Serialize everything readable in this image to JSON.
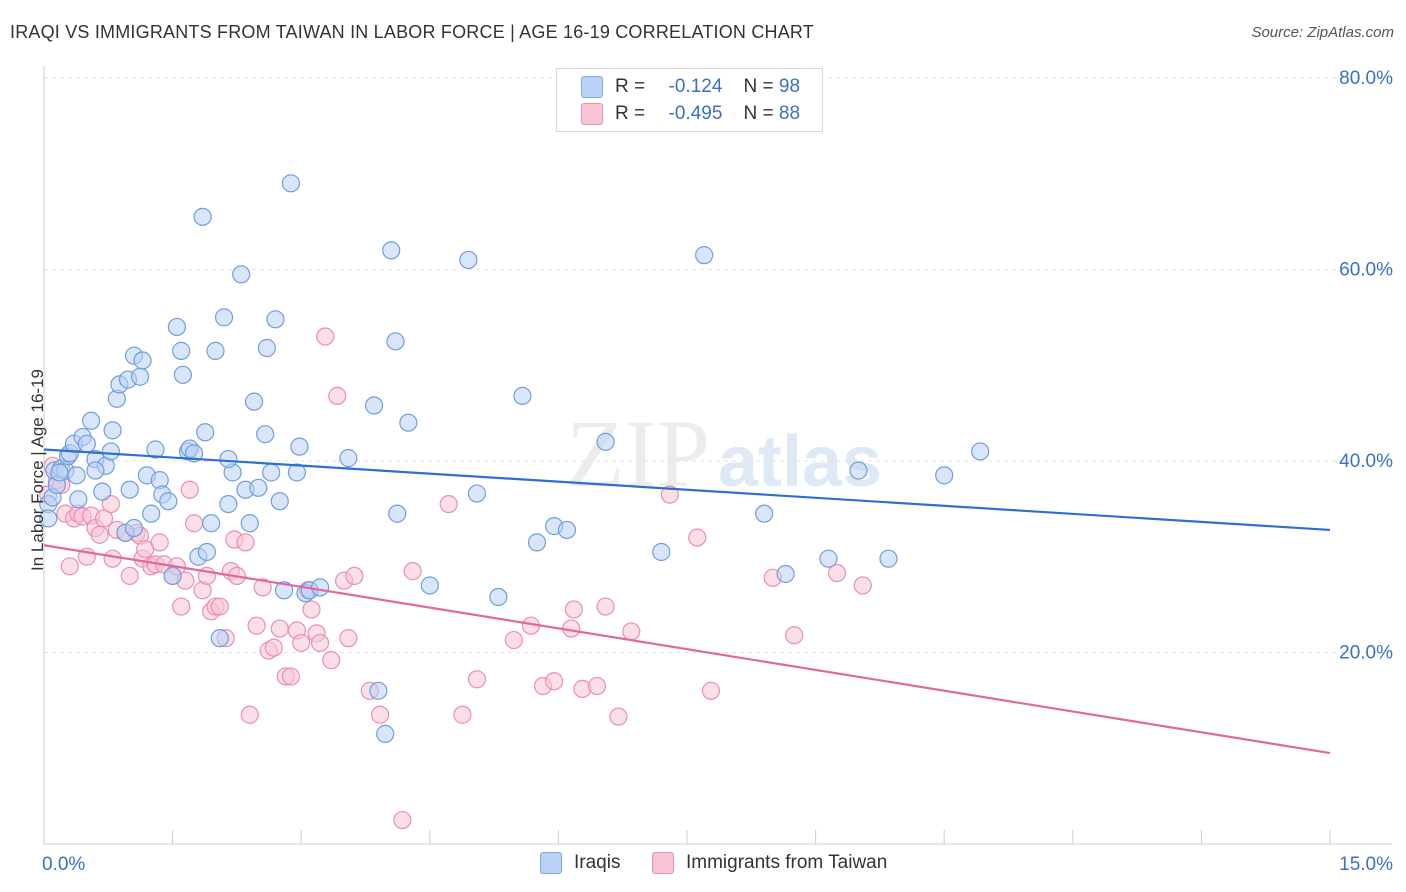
{
  "title": "IRAQI VS IMMIGRANTS FROM TAIWAN IN LABOR FORCE | AGE 16-19 CORRELATION CHART",
  "source": "Source: ZipAtlas.com",
  "watermark": {
    "zip": "ZIP",
    "atlas": "atlas"
  },
  "legend": {
    "rows": [
      {
        "r_label": "R =",
        "r_value": "-0.124",
        "n_label": "N =",
        "n_value": "98"
      },
      {
        "r_label": "R =",
        "r_value": "-0.495",
        "n_label": "N =",
        "n_value": "88"
      }
    ]
  },
  "bottom_legend": {
    "iraqis": "Iraqis",
    "taiwan": "Immigrants from Taiwan"
  },
  "colors": {
    "iraqis_fill": "#b9d2f5",
    "iraqis_stroke": "#6f9ee0",
    "iraqis_line": "#2f6fcf",
    "taiwan_fill": "#f8c4d4",
    "taiwan_stroke": "#ec8fac",
    "taiwan_line": "#e3679a",
    "tick_label": "#3a70c6",
    "grid": "#e3e3e3"
  },
  "chart_data": {
    "type": "scatter",
    "title": "IRAQI VS IMMIGRANTS FROM TAIWAN IN LABOR FORCE | AGE 16-19 CORRELATION CHART",
    "xlabel": "",
    "ylabel": "In Labor Force | Age 16-19",
    "xlim": [
      0,
      15
    ],
    "ylim": [
      0,
      80
    ],
    "x_tick_labels": [
      "0.0%",
      "15.0%"
    ],
    "y_ticks": [
      20,
      40,
      60,
      80
    ],
    "y_tick_labels": [
      "20.0%",
      "40.0%",
      "60.0%",
      "80.0%"
    ],
    "grid": true,
    "legend_position": "top-center",
    "series": [
      {
        "name": "Iraqis",
        "r": -0.124,
        "n": 98,
        "trend": {
          "x": [
            0,
            15
          ],
          "y": [
            41.2,
            32.8
          ]
        },
        "points": [
          [
            0.05,
            35.5
          ],
          [
            0.1,
            36.2
          ],
          [
            0.12,
            39.0
          ],
          [
            0.15,
            37.5
          ],
          [
            0.2,
            39.2
          ],
          [
            0.25,
            39.0
          ],
          [
            0.28,
            40.5
          ],
          [
            0.3,
            40.8
          ],
          [
            0.35,
            41.8
          ],
          [
            0.38,
            38.5
          ],
          [
            0.45,
            42.5
          ],
          [
            0.5,
            41.8
          ],
          [
            0.55,
            44.2
          ],
          [
            0.6,
            40.2
          ],
          [
            0.68,
            36.8
          ],
          [
            0.72,
            39.5
          ],
          [
            0.78,
            41.0
          ],
          [
            0.8,
            43.2
          ],
          [
            0.85,
            46.5
          ],
          [
            0.88,
            48.0
          ],
          [
            0.95,
            32.5
          ],
          [
            0.98,
            48.5
          ],
          [
            1.0,
            37.0
          ],
          [
            1.05,
            51.0
          ],
          [
            1.12,
            48.8
          ],
          [
            1.15,
            50.5
          ],
          [
            1.2,
            38.5
          ],
          [
            1.25,
            34.5
          ],
          [
            1.3,
            41.2
          ],
          [
            1.35,
            38.0
          ],
          [
            1.38,
            36.5
          ],
          [
            1.45,
            35.8
          ],
          [
            1.5,
            28.0
          ],
          [
            1.55,
            54.0
          ],
          [
            1.6,
            51.5
          ],
          [
            1.62,
            49.0
          ],
          [
            1.68,
            41.0
          ],
          [
            1.7,
            41.3
          ],
          [
            1.75,
            40.8
          ],
          [
            1.8,
            30.0
          ],
          [
            1.85,
            65.5
          ],
          [
            1.88,
            43.0
          ],
          [
            1.9,
            30.5
          ],
          [
            1.95,
            33.5
          ],
          [
            2.0,
            51.5
          ],
          [
            2.05,
            21.5
          ],
          [
            2.1,
            55.0
          ],
          [
            2.15,
            35.5
          ],
          [
            2.2,
            38.8
          ],
          [
            2.3,
            59.5
          ],
          [
            2.35,
            37.0
          ],
          [
            2.4,
            33.5
          ],
          [
            2.45,
            46.2
          ],
          [
            2.5,
            37.2
          ],
          [
            2.58,
            42.8
          ],
          [
            2.6,
            51.8
          ],
          [
            2.65,
            38.8
          ],
          [
            2.7,
            54.8
          ],
          [
            2.75,
            35.8
          ],
          [
            2.8,
            26.5
          ],
          [
            2.88,
            69.0
          ],
          [
            2.95,
            38.8
          ],
          [
            2.98,
            41.5
          ],
          [
            3.05,
            26.2
          ],
          [
            3.1,
            26.5
          ],
          [
            3.22,
            26.8
          ],
          [
            3.55,
            40.3
          ],
          [
            3.85,
            45.8
          ],
          [
            3.9,
            16.0
          ],
          [
            3.98,
            11.5
          ],
          [
            4.05,
            62.0
          ],
          [
            4.1,
            52.5
          ],
          [
            4.12,
            34.5
          ],
          [
            4.25,
            44.0
          ],
          [
            4.5,
            27.0
          ],
          [
            4.95,
            61.0
          ],
          [
            5.05,
            36.6
          ],
          [
            5.3,
            25.8
          ],
          [
            5.58,
            46.8
          ],
          [
            5.75,
            31.5
          ],
          [
            5.95,
            33.2
          ],
          [
            6.1,
            32.8
          ],
          [
            6.55,
            42.0
          ],
          [
            7.2,
            30.5
          ],
          [
            7.7,
            61.5
          ],
          [
            8.4,
            34.5
          ],
          [
            8.65,
            28.2
          ],
          [
            9.15,
            29.8
          ],
          [
            9.5,
            39.0
          ],
          [
            9.85,
            29.8
          ],
          [
            10.5,
            38.5
          ],
          [
            10.92,
            41.0
          ],
          [
            0.05,
            34.0
          ],
          [
            0.18,
            38.8
          ],
          [
            0.4,
            36.0
          ],
          [
            1.05,
            33.0
          ],
          [
            2.15,
            40.2
          ],
          [
            0.6,
            39.0
          ]
        ]
      },
      {
        "name": "Immigrants from Taiwan",
        "r": -0.495,
        "n": 88,
        "trend": {
          "x": [
            0,
            15
          ],
          "y": [
            31.2,
            9.5
          ]
        },
        "points": [
          [
            0.05,
            36.5
          ],
          [
            0.1,
            39.5
          ],
          [
            0.15,
            38.0
          ],
          [
            0.2,
            37.5
          ],
          [
            0.25,
            34.5
          ],
          [
            0.3,
            29.0
          ],
          [
            0.35,
            34.0
          ],
          [
            0.4,
            34.5
          ],
          [
            0.45,
            34.2
          ],
          [
            0.5,
            30.0
          ],
          [
            0.55,
            34.3
          ],
          [
            0.6,
            33.0
          ],
          [
            0.65,
            32.3
          ],
          [
            0.7,
            34.0
          ],
          [
            0.78,
            35.5
          ],
          [
            0.8,
            29.8
          ],
          [
            0.85,
            32.8
          ],
          [
            0.95,
            32.5
          ],
          [
            1.0,
            28.0
          ],
          [
            1.08,
            32.5
          ],
          [
            1.12,
            32.2
          ],
          [
            1.15,
            29.8
          ],
          [
            1.18,
            30.8
          ],
          [
            1.25,
            29.0
          ],
          [
            1.3,
            29.2
          ],
          [
            1.35,
            31.5
          ],
          [
            1.4,
            29.2
          ],
          [
            1.5,
            28.0
          ],
          [
            1.55,
            29.0
          ],
          [
            1.6,
            24.8
          ],
          [
            1.65,
            27.5
          ],
          [
            1.7,
            37.0
          ],
          [
            1.75,
            33.5
          ],
          [
            1.85,
            26.5
          ],
          [
            1.9,
            28.0
          ],
          [
            1.95,
            24.3
          ],
          [
            2.0,
            24.8
          ],
          [
            2.05,
            24.8
          ],
          [
            2.12,
            21.5
          ],
          [
            2.18,
            28.5
          ],
          [
            2.22,
            31.8
          ],
          [
            2.25,
            28.0
          ],
          [
            2.35,
            31.5
          ],
          [
            2.4,
            13.5
          ],
          [
            2.48,
            22.8
          ],
          [
            2.55,
            26.8
          ],
          [
            2.62,
            20.2
          ],
          [
            2.68,
            20.5
          ],
          [
            2.75,
            22.5
          ],
          [
            2.82,
            17.5
          ],
          [
            2.88,
            17.5
          ],
          [
            2.95,
            22.3
          ],
          [
            3.0,
            21.0
          ],
          [
            3.08,
            26.5
          ],
          [
            3.12,
            24.5
          ],
          [
            3.18,
            22.0
          ],
          [
            3.22,
            21.0
          ],
          [
            3.28,
            53.0
          ],
          [
            3.35,
            19.2
          ],
          [
            3.42,
            46.8
          ],
          [
            3.5,
            27.5
          ],
          [
            3.55,
            21.5
          ],
          [
            3.62,
            28.0
          ],
          [
            3.8,
            16.0
          ],
          [
            3.92,
            13.5
          ],
          [
            4.18,
            2.5
          ],
          [
            4.3,
            28.5
          ],
          [
            4.72,
            35.5
          ],
          [
            4.88,
            13.5
          ],
          [
            5.05,
            17.2
          ],
          [
            5.48,
            21.3
          ],
          [
            5.68,
            22.8
          ],
          [
            5.82,
            16.5
          ],
          [
            5.95,
            17.0
          ],
          [
            6.15,
            22.5
          ],
          [
            6.18,
            24.5
          ],
          [
            6.28,
            16.2
          ],
          [
            6.45,
            16.5
          ],
          [
            6.55,
            24.8
          ],
          [
            6.7,
            13.3
          ],
          [
            6.85,
            22.2
          ],
          [
            7.3,
            36.5
          ],
          [
            7.62,
            32.0
          ],
          [
            7.78,
            16.0
          ],
          [
            8.5,
            27.8
          ],
          [
            8.75,
            21.8
          ],
          [
            9.25,
            28.3
          ],
          [
            9.55,
            27.0
          ]
        ]
      }
    ]
  }
}
